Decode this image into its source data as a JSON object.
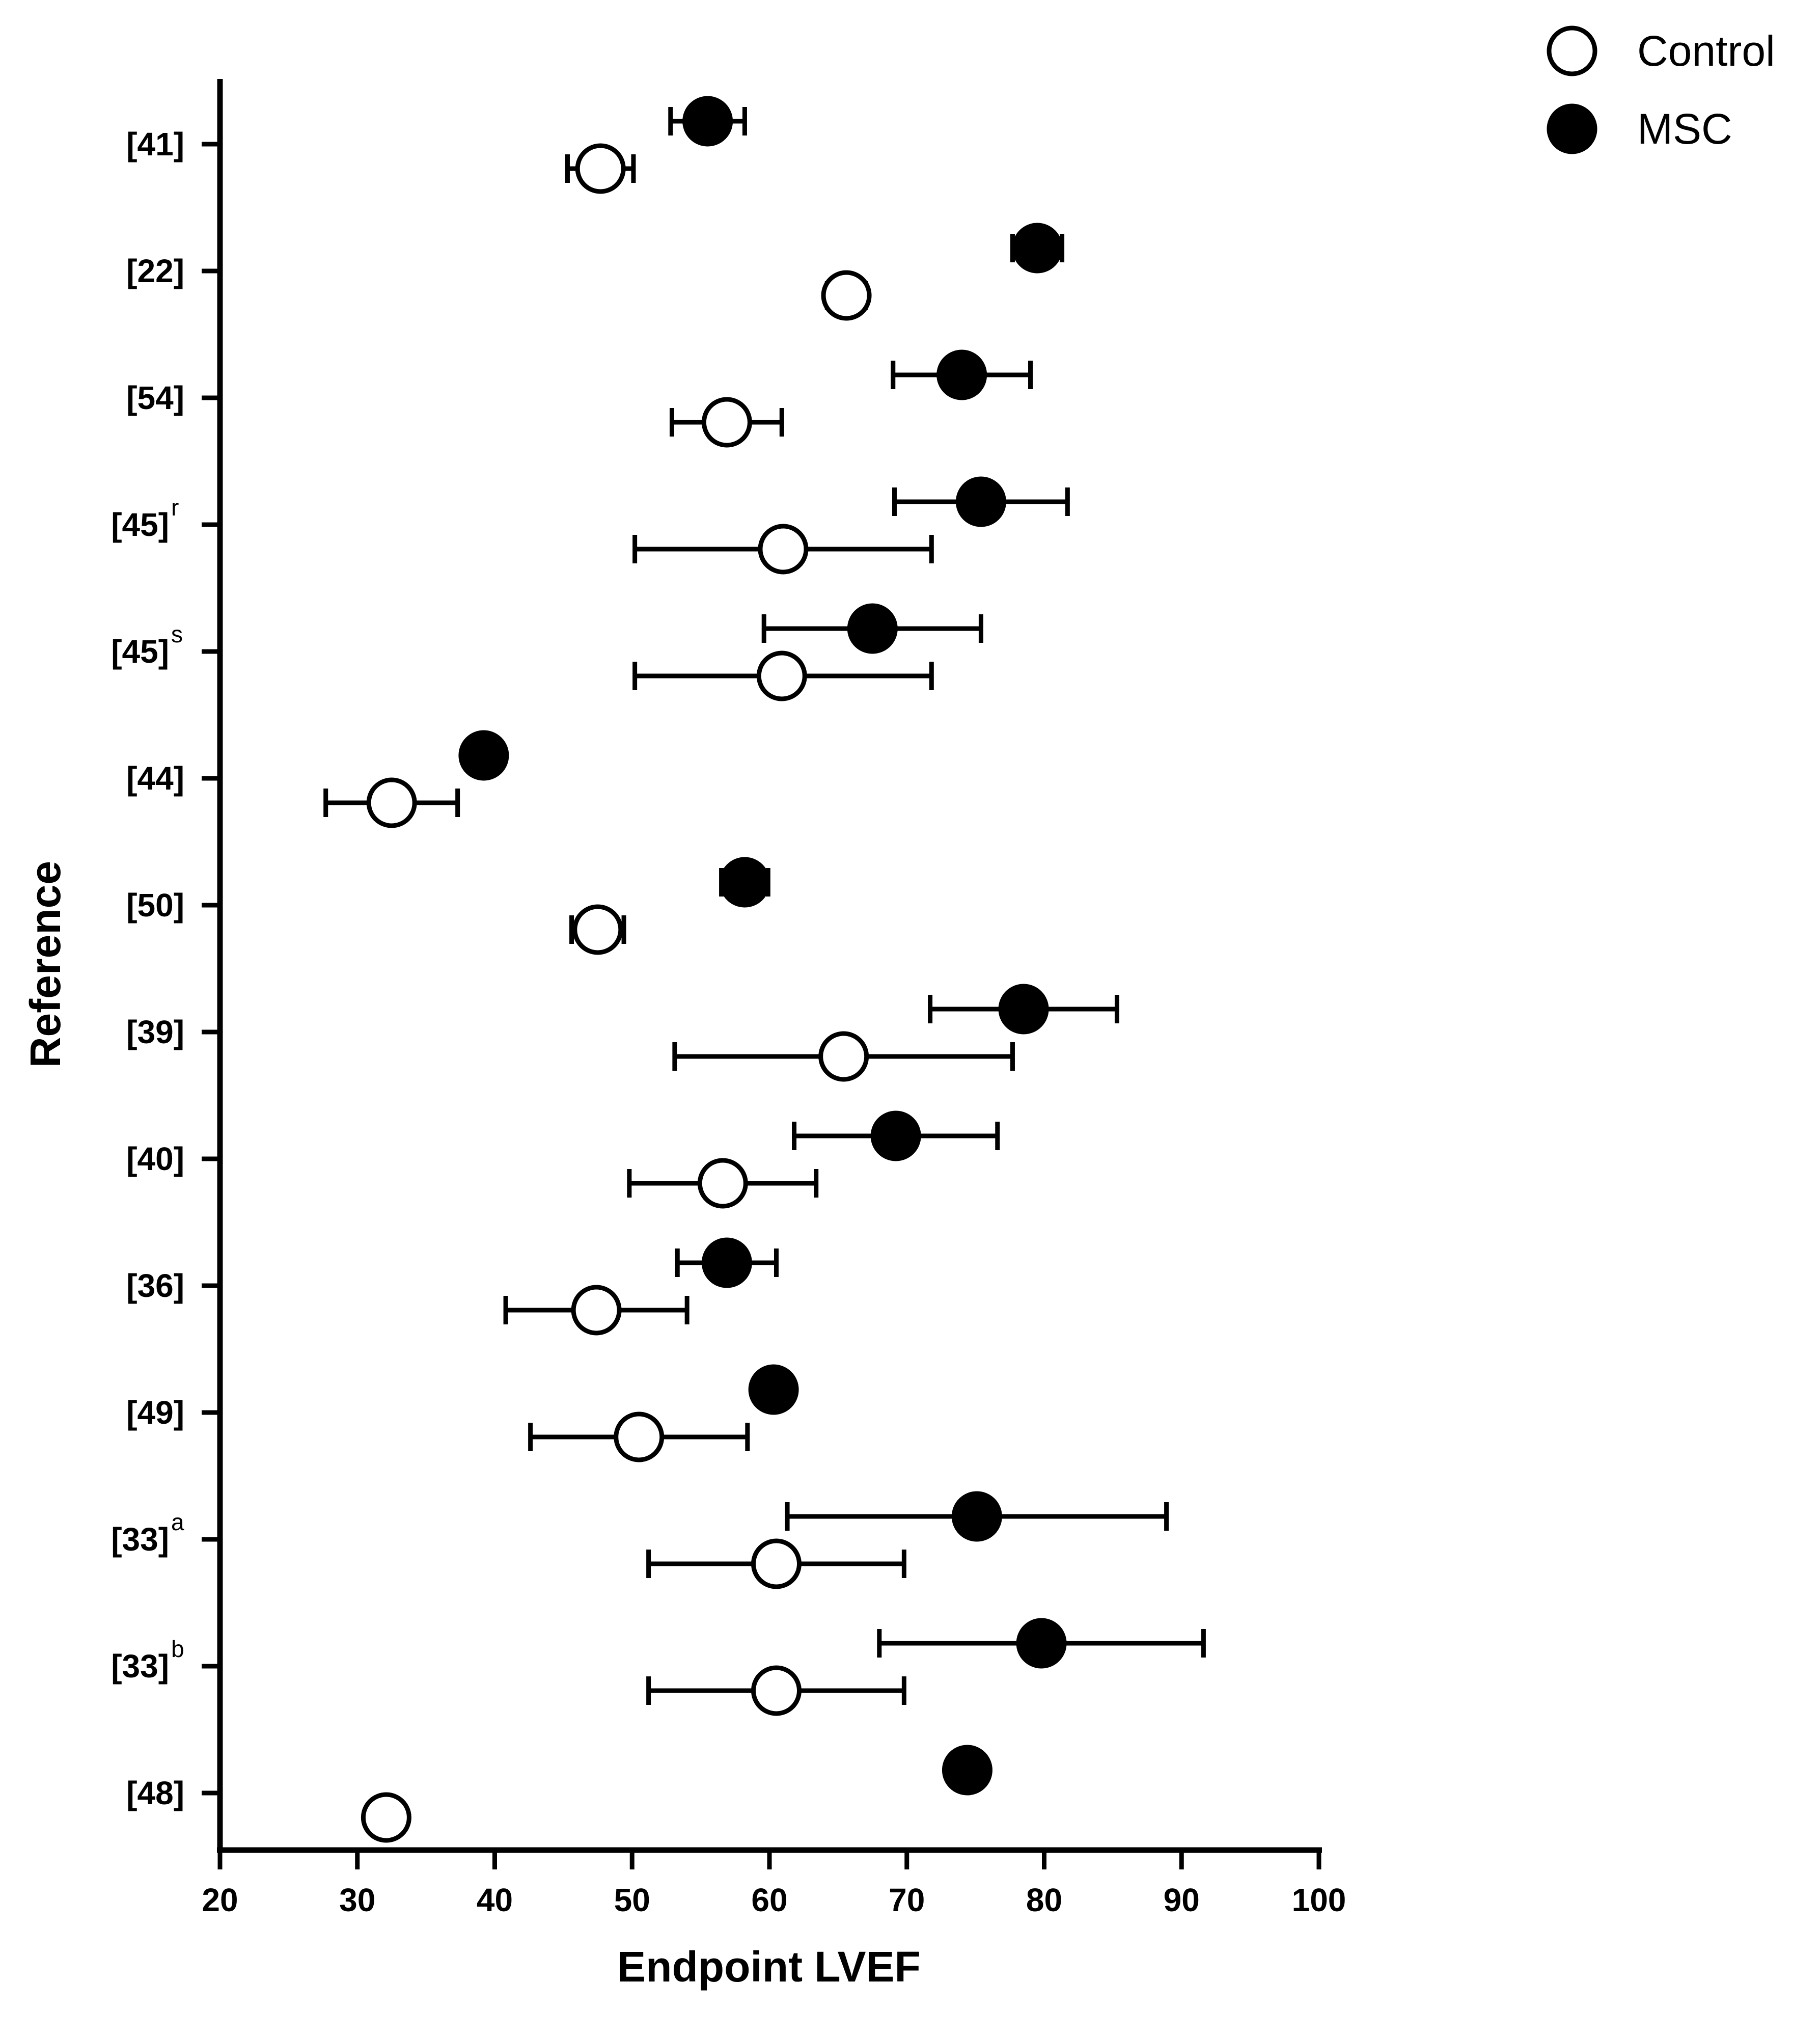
{
  "chart_data": {
    "type": "dot-errorbar",
    "orientation": "horizontal",
    "xlabel": "Endpoint LVEF",
    "ylabel": "Reference",
    "xlim": [
      20,
      100
    ],
    "xticks": [
      20,
      30,
      40,
      50,
      60,
      70,
      80,
      90,
      100
    ],
    "xtick_labels": [
      "20",
      "30",
      "40",
      "50",
      "60",
      "70",
      "80",
      "90",
      "100"
    ],
    "legend": {
      "position": "top-right",
      "entries": [
        {
          "label": "Control",
          "marker": "open-circle"
        },
        {
          "label": "MSC",
          "marker": "filled-circle"
        }
      ]
    },
    "categories": [
      {
        "label": "[41]",
        "sup": ""
      },
      {
        "label": "[22]",
        "sup": ""
      },
      {
        "label": "[54]",
        "sup": ""
      },
      {
        "label": "[45]",
        "sup": "r"
      },
      {
        "label": "[45]",
        "sup": "s"
      },
      {
        "label": "[44]",
        "sup": ""
      },
      {
        "label": "[50]",
        "sup": ""
      },
      {
        "label": "[39]",
        "sup": ""
      },
      {
        "label": "[40]",
        "sup": ""
      },
      {
        "label": "[36]",
        "sup": ""
      },
      {
        "label": "[49]",
        "sup": ""
      },
      {
        "label": "[33]",
        "sup": "a"
      },
      {
        "label": "[33]",
        "sup": "b"
      },
      {
        "label": "[48]",
        "sup": ""
      }
    ],
    "series": [
      {
        "name": "MSC",
        "marker": "filled-circle",
        "values": [
          55.5,
          79.5,
          74.0,
          75.4,
          67.5,
          39.2,
          58.2,
          78.5,
          69.2,
          56.9,
          60.3,
          75.1,
          79.8,
          74.4
        ],
        "error_low": [
          52.8,
          77.7,
          69.0,
          69.1,
          59.6,
          37.9,
          56.5,
          71.7,
          61.8,
          53.3,
          59.4,
          61.3,
          68.0,
          73.3
        ],
        "error_high": [
          58.2,
          81.3,
          79.0,
          81.7,
          75.4,
          40.5,
          59.9,
          85.3,
          76.6,
          60.5,
          61.2,
          88.9,
          91.6,
          75.5
        ]
      },
      {
        "name": "Control",
        "marker": "open-circle",
        "values": [
          47.7,
          65.6,
          56.9,
          61.0,
          60.9,
          32.5,
          47.5,
          65.4,
          56.6,
          47.4,
          50.5,
          60.5,
          60.5,
          32.1
        ],
        "error_low": [
          45.3,
          64.2,
          52.9,
          50.2,
          50.2,
          27.7,
          45.6,
          53.1,
          49.8,
          40.8,
          42.6,
          51.2,
          51.2,
          32.1
        ],
        "error_high": [
          50.1,
          67.0,
          60.9,
          71.8,
          71.8,
          37.3,
          49.4,
          77.7,
          63.4,
          54.0,
          58.4,
          69.8,
          69.8,
          32.1
        ]
      }
    ]
  }
}
